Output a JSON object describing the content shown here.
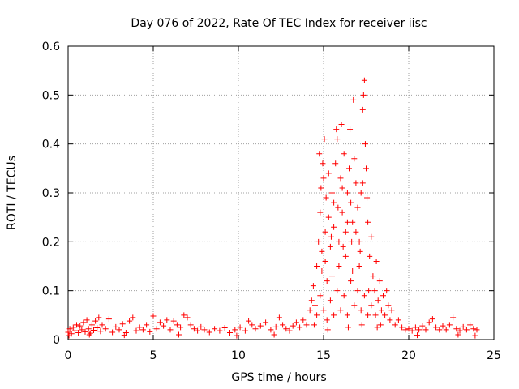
{
  "chart_data": {
    "type": "scatter",
    "title": "Day 076 of 2022, Rate Of TEC Index for receiver iisc",
    "xlabel": "GPS time / hours",
    "ylabel": "ROTI / TECUs",
    "xlim": [
      0,
      25
    ],
    "ylim": [
      0,
      0.6
    ],
    "x_ticks": [
      "0",
      "5",
      "10",
      "15",
      "20",
      "25"
    ],
    "x_tick_values": [
      0,
      5,
      10,
      15,
      20,
      25
    ],
    "y_ticks": [
      "0",
      "0.1",
      "0.2",
      "0.3",
      "0.4",
      "0.5",
      "0.6"
    ],
    "y_tick_values": [
      0,
      0.1,
      0.2,
      0.3,
      0.4,
      0.5,
      0.6
    ],
    "grid": true,
    "marker": "+",
    "series": [
      {
        "name": "ROTI",
        "color": "#ff0000",
        "points": [
          [
            0.0,
            0.015
          ],
          [
            0.1,
            0.022
          ],
          [
            0.2,
            0.012
          ],
          [
            0.3,
            0.025
          ],
          [
            0.4,
            0.018
          ],
          [
            0.5,
            0.03
          ],
          [
            0.6,
            0.014
          ],
          [
            0.7,
            0.028
          ],
          [
            0.8,
            0.02
          ],
          [
            0.9,
            0.035
          ],
          [
            1.0,
            0.016
          ],
          [
            1.1,
            0.04
          ],
          [
            1.2,
            0.022
          ],
          [
            1.3,
            0.013
          ],
          [
            1.4,
            0.03
          ],
          [
            1.5,
            0.019
          ],
          [
            1.6,
            0.038
          ],
          [
            1.7,
            0.024
          ],
          [
            1.8,
            0.045
          ],
          [
            1.9,
            0.017
          ],
          [
            2.0,
            0.03
          ],
          [
            2.2,
            0.022
          ],
          [
            2.4,
            0.042
          ],
          [
            2.6,
            0.015
          ],
          [
            2.8,
            0.026
          ],
          [
            3.0,
            0.02
          ],
          [
            3.2,
            0.032
          ],
          [
            3.4,
            0.014
          ],
          [
            3.6,
            0.038
          ],
          [
            3.8,
            0.045
          ],
          [
            4.0,
            0.018
          ],
          [
            4.2,
            0.025
          ],
          [
            4.4,
            0.02
          ],
          [
            4.6,
            0.03
          ],
          [
            4.8,
            0.016
          ],
          [
            5.0,
            0.048
          ],
          [
            5.2,
            0.022
          ],
          [
            5.4,
            0.035
          ],
          [
            5.6,
            0.028
          ],
          [
            5.8,
            0.04
          ],
          [
            6.0,
            0.02
          ],
          [
            6.2,
            0.038
          ],
          [
            6.4,
            0.03
          ],
          [
            6.6,
            0.025
          ],
          [
            6.8,
            0.05
          ],
          [
            7.0,
            0.045
          ],
          [
            7.2,
            0.03
          ],
          [
            7.4,
            0.022
          ],
          [
            7.6,
            0.018
          ],
          [
            7.8,
            0.026
          ],
          [
            8.0,
            0.02
          ],
          [
            8.3,
            0.015
          ],
          [
            8.6,
            0.022
          ],
          [
            8.9,
            0.018
          ],
          [
            9.2,
            0.024
          ],
          [
            9.5,
            0.014
          ],
          [
            9.8,
            0.02
          ],
          [
            10.1,
            0.025
          ],
          [
            10.4,
            0.018
          ],
          [
            10.6,
            0.038
          ],
          [
            10.8,
            0.03
          ],
          [
            11.0,
            0.022
          ],
          [
            11.3,
            0.028
          ],
          [
            11.6,
            0.035
          ],
          [
            11.9,
            0.02
          ],
          [
            12.2,
            0.026
          ],
          [
            12.4,
            0.045
          ],
          [
            12.6,
            0.03
          ],
          [
            12.8,
            0.022
          ],
          [
            13.0,
            0.018
          ],
          [
            13.2,
            0.028
          ],
          [
            13.4,
            0.035
          ],
          [
            13.6,
            0.025
          ],
          [
            13.8,
            0.04
          ],
          [
            14.0,
            0.03
          ],
          [
            14.2,
            0.06
          ],
          [
            14.3,
            0.08
          ],
          [
            14.4,
            0.11
          ],
          [
            14.5,
            0.07
          ],
          [
            14.6,
            0.15
          ],
          [
            14.7,
            0.2
          ],
          [
            14.75,
            0.38
          ],
          [
            14.8,
            0.26
          ],
          [
            14.85,
            0.31
          ],
          [
            14.9,
            0.18
          ],
          [
            14.95,
            0.36
          ],
          [
            15.0,
            0.33
          ],
          [
            15.05,
            0.41
          ],
          [
            15.1,
            0.22
          ],
          [
            15.15,
            0.29
          ],
          [
            15.2,
            0.12
          ],
          [
            15.3,
            0.25
          ],
          [
            15.4,
            0.19
          ],
          [
            15.5,
            0.3
          ],
          [
            15.6,
            0.23
          ],
          [
            15.7,
            0.36
          ],
          [
            15.75,
            0.43
          ],
          [
            15.8,
            0.41
          ],
          [
            15.85,
            0.27
          ],
          [
            15.9,
            0.2
          ],
          [
            16.0,
            0.33
          ],
          [
            16.05,
            0.44
          ],
          [
            16.1,
            0.26
          ],
          [
            16.2,
            0.38
          ],
          [
            16.3,
            0.22
          ],
          [
            16.4,
            0.3
          ],
          [
            16.5,
            0.35
          ],
          [
            16.55,
            0.43
          ],
          [
            16.6,
            0.28
          ],
          [
            16.7,
            0.24
          ],
          [
            16.75,
            0.49
          ],
          [
            16.8,
            0.37
          ],
          [
            16.9,
            0.32
          ],
          [
            17.0,
            0.27
          ],
          [
            17.1,
            0.2
          ],
          [
            17.2,
            0.3
          ],
          [
            17.3,
            0.47
          ],
          [
            17.35,
            0.5
          ],
          [
            17.4,
            0.53
          ],
          [
            17.45,
            0.4
          ],
          [
            17.5,
            0.35
          ],
          [
            17.55,
            0.29
          ],
          [
            17.6,
            0.24
          ],
          [
            17.7,
            0.17
          ],
          [
            17.8,
            0.21
          ],
          [
            17.9,
            0.13
          ],
          [
            18.0,
            0.1
          ],
          [
            18.1,
            0.16
          ],
          [
            18.2,
            0.08
          ],
          [
            18.3,
            0.12
          ],
          [
            18.4,
            0.06
          ],
          [
            18.5,
            0.09
          ],
          [
            18.6,
            0.05
          ],
          [
            18.7,
            0.1
          ],
          [
            18.8,
            0.07
          ],
          [
            18.9,
            0.04
          ],
          [
            19.0,
            0.06
          ],
          [
            19.2,
            0.03
          ],
          [
            19.4,
            0.04
          ],
          [
            19.6,
            0.025
          ],
          [
            19.8,
            0.02
          ],
          [
            20.0,
            0.022
          ],
          [
            20.2,
            0.018
          ],
          [
            20.4,
            0.025
          ],
          [
            20.6,
            0.02
          ],
          [
            20.8,
            0.028
          ],
          [
            21.0,
            0.02
          ],
          [
            21.2,
            0.035
          ],
          [
            21.4,
            0.042
          ],
          [
            21.6,
            0.025
          ],
          [
            21.8,
            0.02
          ],
          [
            22.0,
            0.028
          ],
          [
            22.2,
            0.02
          ],
          [
            22.4,
            0.03
          ],
          [
            22.6,
            0.045
          ],
          [
            22.8,
            0.022
          ],
          [
            23.0,
            0.018
          ],
          [
            23.2,
            0.026
          ],
          [
            23.4,
            0.02
          ],
          [
            23.6,
            0.03
          ],
          [
            23.8,
            0.022
          ],
          [
            24.0,
            0.02
          ],
          [
            14.6,
            0.05
          ],
          [
            14.8,
            0.09
          ],
          [
            15.0,
            0.06
          ],
          [
            15.2,
            0.04
          ],
          [
            15.4,
            0.08
          ],
          [
            15.6,
            0.05
          ],
          [
            15.8,
            0.1
          ],
          [
            16.0,
            0.06
          ],
          [
            16.2,
            0.09
          ],
          [
            16.4,
            0.05
          ],
          [
            16.6,
            0.12
          ],
          [
            16.8,
            0.07
          ],
          [
            17.0,
            0.1
          ],
          [
            17.2,
            0.06
          ],
          [
            17.4,
            0.09
          ],
          [
            17.6,
            0.05
          ],
          [
            17.8,
            0.07
          ],
          [
            15.1,
            0.16
          ],
          [
            15.5,
            0.13
          ],
          [
            15.9,
            0.15
          ],
          [
            16.3,
            0.17
          ],
          [
            16.7,
            0.14
          ],
          [
            17.1,
            0.15
          ],
          [
            15.3,
            0.34
          ],
          [
            15.6,
            0.28
          ],
          [
            16.1,
            0.31
          ],
          [
            16.4,
            0.24
          ],
          [
            16.9,
            0.22
          ],
          [
            17.3,
            0.32
          ],
          [
            14.9,
            0.14
          ],
          [
            15.45,
            0.21
          ],
          [
            16.15,
            0.19
          ],
          [
            16.65,
            0.2
          ],
          [
            17.15,
            0.18
          ],
          [
            17.65,
            0.1
          ],
          [
            18.05,
            0.05
          ],
          [
            18.35,
            0.03
          ],
          [
            14.45,
            0.03
          ],
          [
            15.25,
            0.02
          ],
          [
            16.45,
            0.025
          ],
          [
            17.25,
            0.03
          ],
          [
            18.15,
            0.025
          ],
          [
            0.05,
            0.008
          ],
          [
            1.25,
            0.01
          ],
          [
            3.3,
            0.009
          ],
          [
            6.5,
            0.01
          ],
          [
            9.9,
            0.008
          ],
          [
            12.1,
            0.01
          ],
          [
            20.5,
            0.009
          ],
          [
            22.9,
            0.01
          ],
          [
            23.9,
            0.008
          ]
        ]
      }
    ]
  }
}
